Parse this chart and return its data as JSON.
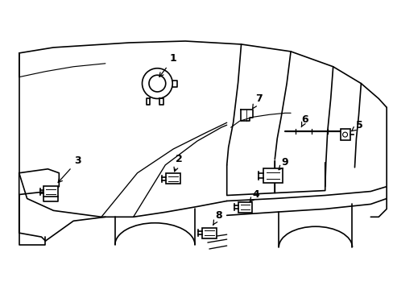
{
  "background_color": "#ffffff",
  "line_color": "#000000",
  "line_width": 1.2,
  "fig_width": 4.89,
  "fig_height": 3.6,
  "dpi": 100,
  "label_data": {
    "1": [
      215,
      72,
      195,
      98
    ],
    "2": [
      222,
      198,
      215,
      217
    ],
    "3": [
      95,
      200,
      68,
      230
    ],
    "4": [
      318,
      242,
      310,
      252
    ],
    "5": [
      448,
      155,
      435,
      165
    ],
    "6": [
      380,
      148,
      375,
      158
    ],
    "7": [
      322,
      122,
      312,
      138
    ],
    "8": [
      272,
      268,
      263,
      283
    ],
    "9": [
      355,
      202,
      346,
      212
    ]
  }
}
